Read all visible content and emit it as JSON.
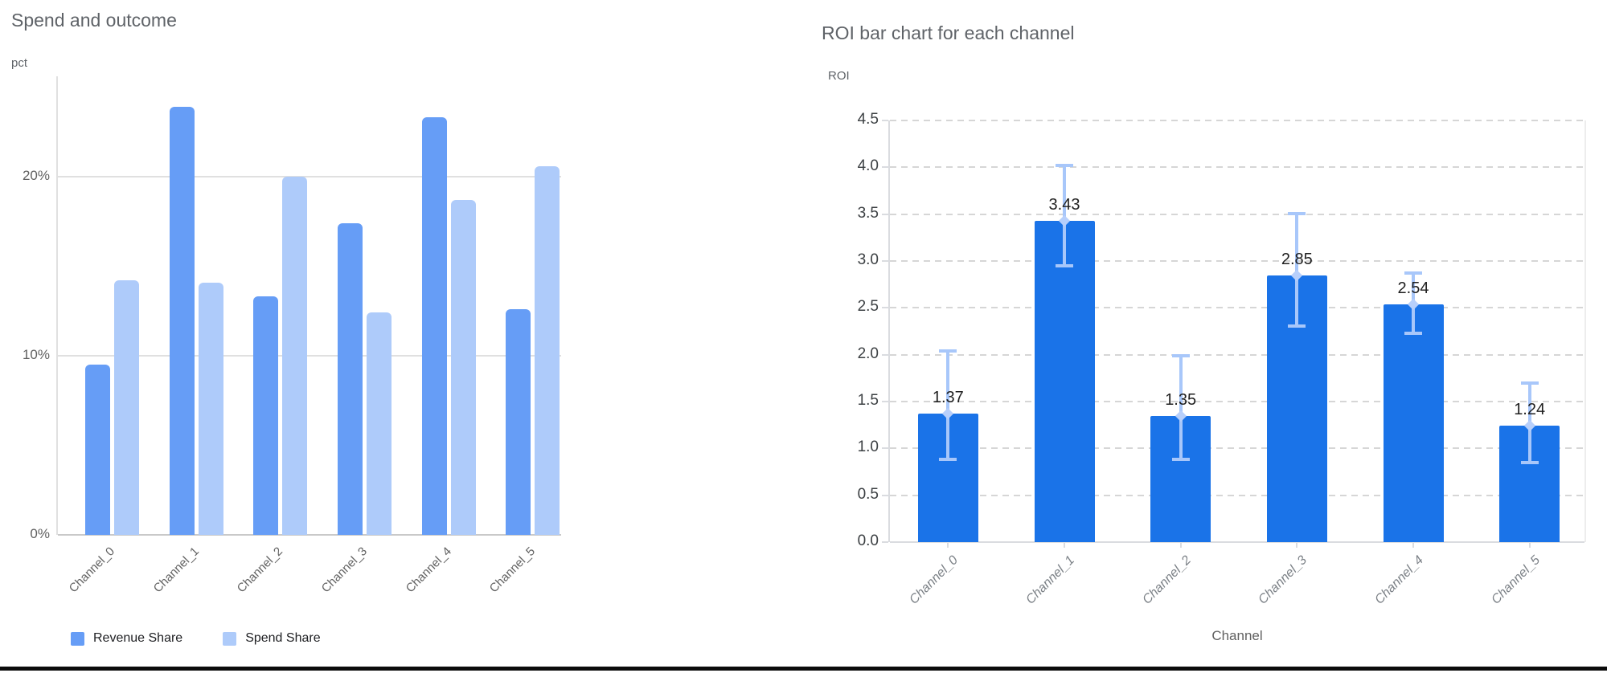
{
  "chart_data": [
    {
      "type": "bar",
      "title": "Spend and outcome",
      "ylabel": "pct",
      "xlabel": "",
      "categories": [
        "Channel_0",
        "Channel_1",
        "Channel_2",
        "Channel_3",
        "Channel_4",
        "Channel_5"
      ],
      "series": [
        {
          "name": "Revenue Share",
          "color": "#669df6",
          "values": [
            9.5,
            23.9,
            13.3,
            17.4,
            23.3,
            12.6
          ]
        },
        {
          "name": "Spend Share",
          "color": "#aecbfa",
          "values": [
            14.2,
            14.1,
            20.0,
            12.4,
            18.7,
            20.6
          ]
        }
      ],
      "y_ticks": [
        {
          "label": "0%",
          "value": 0
        },
        {
          "label": "10%",
          "value": 10
        },
        {
          "label": "20%",
          "value": 20
        }
      ],
      "ylim": [
        0,
        25.6
      ],
      "grid": "solid-horizontal",
      "legend_position": "bottom-left"
    },
    {
      "type": "bar",
      "title": "ROI bar chart for each channel",
      "ylabel": "ROI",
      "xlabel": "Channel",
      "categories": [
        "Channel_0",
        "Channel_1",
        "Channel_2",
        "Channel_3",
        "Channel_4",
        "Channel_5"
      ],
      "values": [
        1.37,
        3.43,
        1.35,
        2.85,
        2.54,
        1.24
      ],
      "value_labels": [
        "1.37",
        "3.43",
        "1.35",
        "2.85",
        "2.54",
        "1.24"
      ],
      "error_upper": [
        2.04,
        4.02,
        1.99,
        3.51,
        2.87,
        1.7
      ],
      "error_lower": [
        0.88,
        2.95,
        0.88,
        2.31,
        2.23,
        0.85
      ],
      "bar_color": "#1a73e8",
      "error_color": "#a8c7fa",
      "y_ticks": [
        {
          "label": "0.0",
          "value": 0.0
        },
        {
          "label": "0.5",
          "value": 0.5
        },
        {
          "label": "1.0",
          "value": 1.0
        },
        {
          "label": "1.5",
          "value": 1.5
        },
        {
          "label": "2.0",
          "value": 2.0
        },
        {
          "label": "2.5",
          "value": 2.5
        },
        {
          "label": "3.0",
          "value": 3.0
        },
        {
          "label": "3.5",
          "value": 3.5
        },
        {
          "label": "4.0",
          "value": 4.0
        },
        {
          "label": "4.5",
          "value": 4.5
        }
      ],
      "ylim": [
        0,
        4.5
      ],
      "grid": "dashed-horizontal",
      "legend_position": "none"
    }
  ]
}
